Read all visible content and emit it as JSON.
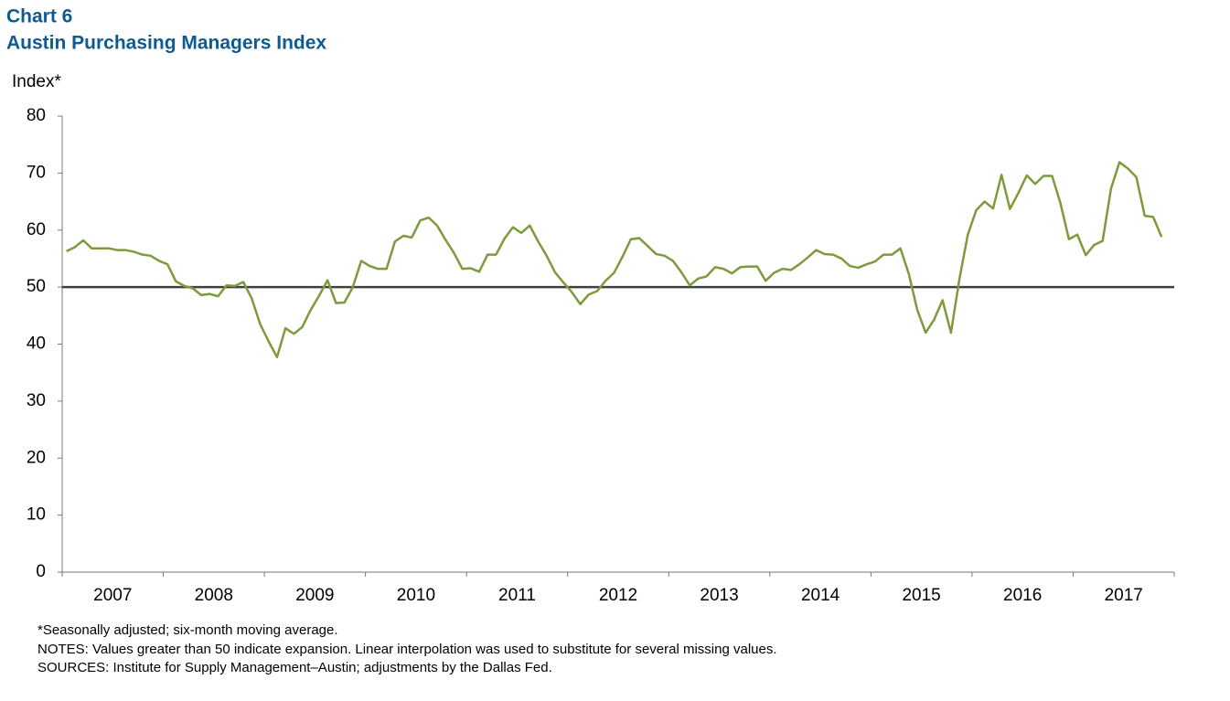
{
  "chart_data": {
    "type": "line",
    "title": "Chart 6",
    "subtitle": "Austin Purchasing Managers Index",
    "y_label": "Index*",
    "notes": [
      "*Seasonally adjusted; six-month moving average.",
      "NOTES: Values greater than 50 indicate expansion. Linear interpolation was used to substitute for several missing values.",
      "SOURCES: Institute for Supply Management–Austin; adjustments by the Dallas Fed."
    ],
    "year_labels": [
      "2007",
      "2008",
      "2009",
      "2010",
      "2011",
      "2012",
      "2013",
      "2014",
      "2015",
      "2016",
      "2017"
    ],
    "categories": [
      null,
      null,
      null,
      null,
      null,
      null,
      null,
      null,
      null,
      null,
      null,
      null,
      null,
      null,
      null,
      null,
      null,
      null,
      null,
      null,
      null,
      null,
      null,
      null,
      null,
      null,
      null,
      null,
      null,
      null,
      null,
      null,
      null,
      null,
      null,
      null,
      null,
      null,
      null,
      null,
      null,
      null,
      null,
      null,
      null,
      null,
      null,
      null,
      null,
      null,
      null,
      null,
      null,
      null,
      null,
      null,
      null,
      null,
      null,
      null,
      null,
      null,
      null,
      null,
      null,
      null,
      null,
      null,
      null,
      null,
      null,
      null,
      null,
      null,
      null,
      null,
      null,
      null,
      null,
      null,
      null,
      null,
      null,
      null,
      null,
      null,
      null,
      null,
      null,
      null,
      null,
      null,
      null,
      null,
      null,
      null,
      null,
      null,
      null,
      null,
      null,
      null,
      null,
      null,
      null,
      null,
      null,
      null,
      null,
      null,
      null,
      null,
      null,
      null,
      null,
      null,
      null,
      null,
      null,
      null,
      null,
      null,
      null,
      null,
      null,
      null,
      null,
      null,
      null,
      null,
      null
    ],
    "series": [
      {
        "color": "#7d9a3c",
        "values": [
          56.3,
          57,
          58.2,
          56.8,
          56.8,
          56.8,
          56.5,
          56.5,
          56.2,
          55.7,
          55.5,
          54.6,
          54,
          51,
          50.2,
          49.8,
          48.6,
          48.8,
          48.4,
          50.3,
          50.2,
          50.9,
          48,
          43.5,
          40.5,
          37.7,
          42.8,
          41.8,
          43,
          46,
          48.5,
          51.2,
          47.2,
          47.3,
          50,
          54.6,
          53.7,
          53.2,
          53.2,
          58,
          59,
          58.7,
          61.7,
          62.2,
          60.8,
          58.3,
          56,
          53.2,
          53.3,
          52.7,
          55.7,
          55.7,
          58.5,
          60.5,
          59.5,
          60.8,
          58,
          55.5,
          52.6,
          50.8,
          49.1,
          47,
          48.7,
          49.3,
          51.1,
          52.5,
          55.3,
          58.4,
          58.6,
          57.2,
          55.8,
          55.5,
          54.6,
          52.6,
          50.3,
          51.5,
          51.9,
          53.5,
          53.2,
          52.4,
          53.5,
          53.6,
          53.6,
          51.1,
          52.5,
          53.2,
          53,
          54,
          55.2,
          56.5,
          55.8,
          55.7,
          55,
          53.7,
          53.4,
          54,
          54.5,
          55.7,
          55.7,
          56.8,
          52.3,
          46,
          42,
          44.3,
          47.7,
          42,
          51.4,
          59.2,
          63.5,
          65,
          63.8,
          69.7,
          63.7,
          66.5,
          69.6,
          68.1,
          69.5,
          69.5,
          64.7,
          58.4,
          59.2,
          55.6,
          57.4,
          58.1,
          67.3,
          71.9,
          70.8,
          69.3,
          62.5,
          62.3,
          58.8
        ]
      }
    ],
    "reference_line": 50,
    "reference_color": "#404040",
    "ylim": [
      0,
      80
    ],
    "yticks": [
      0,
      10,
      20,
      30,
      40,
      50,
      60,
      70,
      80
    ]
  }
}
